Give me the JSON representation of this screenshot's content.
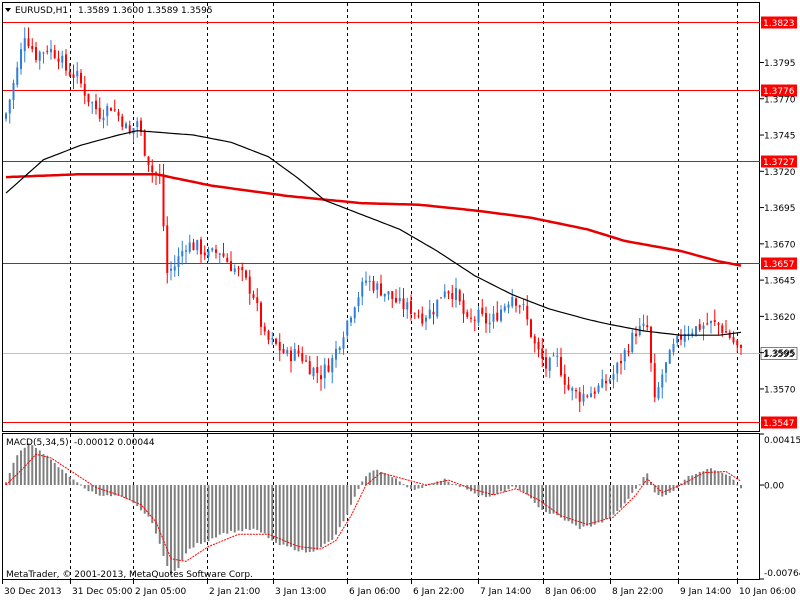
{
  "header": {
    "symbol": "EURUSD,H1",
    "ohlc": "1.3589 1.3600 1.3589 1.3595"
  },
  "macd": {
    "label": "MACD(5,34,5)",
    "values": "-0.00012 0.00044",
    "axis_ticks": [
      "0.00415",
      "0.00",
      "-0.00764"
    ]
  },
  "copyright": "MetaTrader, © 2001-2013, MetaQuotes Software Corp.",
  "colors": {
    "bull": "#2f7ed8",
    "bear": "#ff0000",
    "ma_fast": "#000000",
    "ma_slow": "#e60000",
    "grid": "#000000",
    "level": "#ff0000",
    "histogram": "#808080",
    "signal": "#ff0000"
  },
  "chart_data": {
    "type": "candlestick",
    "price_axis": {
      "ticks": [
        "1.3795",
        "1.3770",
        "1.3745",
        "1.3720",
        "1.3695",
        "1.3670",
        "1.3645",
        "1.3620",
        "1.3595",
        "1.3570"
      ],
      "ylim": [
        1.3541,
        1.3836
      ]
    },
    "time_axis": {
      "ticks": [
        "30 Dec 2013",
        "31 Dec 05:00",
        "2 Jan 05:00",
        "2 Jan 21:00",
        "3 Jan 13:00",
        "6 Jan 06:00",
        "6 Jan 22:00",
        "7 Jan 14:00",
        "8 Jan 06:00",
        "8 Jan 22:00",
        "9 Jan 14:00",
        "10 Jan 06:00"
      ]
    },
    "levels": [
      {
        "price": 1.3823,
        "label": "1.3823"
      },
      {
        "price": 1.3776,
        "label": "1.3776"
      },
      {
        "price": 1.3727,
        "label": "1.3727"
      },
      {
        "price": 1.3657,
        "label": "1.3657"
      },
      {
        "price": 1.3547,
        "label": "1.3547"
      }
    ],
    "current_price": {
      "price": 1.3595,
      "label": "1.3595"
    },
    "close_keypoints": [
      [
        0,
        1.376
      ],
      [
        3,
        1.379
      ],
      [
        5,
        1.3815
      ],
      [
        8,
        1.38
      ],
      [
        11,
        1.3805
      ],
      [
        14,
        1.38
      ],
      [
        16,
        1.379
      ],
      [
        19,
        1.3785
      ],
      [
        22,
        1.377
      ],
      [
        25,
        1.376
      ],
      [
        28,
        1.3765
      ],
      [
        31,
        1.3755
      ],
      [
        33,
        1.3745
      ],
      [
        35,
        1.3755
      ],
      [
        37,
        1.3735
      ],
      [
        39,
        1.372
      ],
      [
        41,
        1.3715
      ],
      [
        43,
        1.365
      ],
      [
        45,
        1.3655
      ],
      [
        48,
        1.367
      ],
      [
        51,
        1.3668
      ],
      [
        54,
        1.3662
      ],
      [
        57,
        1.3665
      ],
      [
        60,
        1.3655
      ],
      [
        63,
        1.3648
      ],
      [
        66,
        1.3635
      ],
      [
        69,
        1.3605
      ],
      [
        72,
        1.36
      ],
      [
        75,
        1.3593
      ],
      [
        78,
        1.3595
      ],
      [
        81,
        1.3585
      ],
      [
        84,
        1.358
      ],
      [
        87,
        1.359
      ],
      [
        90,
        1.361
      ],
      [
        93,
        1.363
      ],
      [
        96,
        1.3645
      ],
      [
        99,
        1.364
      ],
      [
        102,
        1.3635
      ],
      [
        105,
        1.3628
      ],
      [
        108,
        1.3625
      ],
      [
        111,
        1.362
      ],
      [
        114,
        1.3625
      ],
      [
        117,
        1.364
      ],
      [
        120,
        1.3635
      ],
      [
        123,
        1.3615
      ],
      [
        126,
        1.362
      ],
      [
        129,
        1.3615
      ],
      [
        132,
        1.3625
      ],
      [
        135,
        1.3635
      ],
      [
        138,
        1.3625
      ],
      [
        141,
        1.36
      ],
      [
        144,
        1.3585
      ],
      [
        147,
        1.359
      ],
      [
        150,
        1.357
      ],
      [
        153,
        1.3565
      ],
      [
        156,
        1.3568
      ],
      [
        159,
        1.3572
      ],
      [
        162,
        1.358
      ],
      [
        165,
        1.3595
      ],
      [
        168,
        1.361
      ],
      [
        171,
        1.3612
      ],
      [
        173,
        1.356
      ],
      [
        175,
        1.358
      ],
      [
        178,
        1.3598
      ],
      [
        181,
        1.361
      ],
      [
        184,
        1.3612
      ],
      [
        187,
        1.3615
      ],
      [
        190,
        1.3614
      ],
      [
        193,
        1.3606
      ],
      [
        196,
        1.3595
      ]
    ],
    "ma_fast_keypoints": [
      [
        0,
        1.3705
      ],
      [
        10,
        1.3728
      ],
      [
        20,
        1.3738
      ],
      [
        30,
        1.3745
      ],
      [
        35,
        1.3748
      ],
      [
        50,
        1.3745
      ],
      [
        60,
        1.374
      ],
      [
        70,
        1.373
      ],
      [
        78,
        1.3715
      ],
      [
        85,
        1.37
      ],
      [
        95,
        1.369
      ],
      [
        105,
        1.368
      ],
      [
        115,
        1.3665
      ],
      [
        125,
        1.3648
      ],
      [
        135,
        1.3635
      ],
      [
        145,
        1.3625
      ],
      [
        155,
        1.3618
      ],
      [
        160,
        1.3615
      ],
      [
        170,
        1.361
      ],
      [
        180,
        1.3607
      ],
      [
        190,
        1.3607
      ],
      [
        196,
        1.3609
      ]
    ],
    "ma_slow_keypoints": [
      [
        0,
        1.3716
      ],
      [
        20,
        1.3718
      ],
      [
        40,
        1.3718
      ],
      [
        55,
        1.371
      ],
      [
        75,
        1.3703
      ],
      [
        95,
        1.3698
      ],
      [
        110,
        1.3697
      ],
      [
        125,
        1.3693
      ],
      [
        140,
        1.3688
      ],
      [
        155,
        1.368
      ],
      [
        165,
        1.3672
      ],
      [
        180,
        1.3665
      ],
      [
        190,
        1.3658
      ],
      [
        196,
        1.3655
      ]
    ],
    "macd_ylim": [
      -0.00764,
      0.00415
    ],
    "macd_hist_keypoints": [
      [
        0,
        0.0003
      ],
      [
        3,
        0.0025
      ],
      [
        6,
        0.0033
      ],
      [
        9,
        0.0029
      ],
      [
        12,
        0.002
      ],
      [
        15,
        0.0012
      ],
      [
        18,
        0.0005
      ],
      [
        21,
        -0.0003
      ],
      [
        24,
        -0.0007
      ],
      [
        27,
        -0.0009
      ],
      [
        30,
        -0.0009
      ],
      [
        33,
        -0.0013
      ],
      [
        36,
        -0.002
      ],
      [
        39,
        -0.003
      ],
      [
        42,
        -0.0058
      ],
      [
        44,
        -0.0072
      ],
      [
        46,
        -0.0068
      ],
      [
        48,
        -0.0055
      ],
      [
        51,
        -0.0048
      ],
      [
        54,
        -0.0045
      ],
      [
        57,
        -0.004
      ],
      [
        60,
        -0.0038
      ],
      [
        63,
        -0.0037
      ],
      [
        66,
        -0.0036
      ],
      [
        69,
        -0.004
      ],
      [
        72,
        -0.0048
      ],
      [
        75,
        -0.005
      ],
      [
        78,
        -0.0053
      ],
      [
        81,
        -0.0055
      ],
      [
        84,
        -0.005
      ],
      [
        87,
        -0.0045
      ],
      [
        90,
        -0.003
      ],
      [
        93,
        -0.001
      ],
      [
        96,
        0.0008
      ],
      [
        99,
        0.0013
      ],
      [
        102,
        0.0008
      ],
      [
        105,
        0.0003
      ],
      [
        108,
        -0.0003
      ],
      [
        111,
        -0.0003
      ],
      [
        114,
        0.0002
      ],
      [
        117,
        0.0005
      ],
      [
        120,
        0.0
      ],
      [
        123,
        -0.0003
      ],
      [
        126,
        -0.0008
      ],
      [
        129,
        -0.001
      ],
      [
        132,
        -0.0006
      ],
      [
        135,
        -0.0002
      ],
      [
        138,
        -0.0005
      ],
      [
        141,
        -0.0015
      ],
      [
        144,
        -0.0022
      ],
      [
        147,
        -0.0025
      ],
      [
        150,
        -0.003
      ],
      [
        153,
        -0.0035
      ],
      [
        156,
        -0.0033
      ],
      [
        159,
        -0.003
      ],
      [
        162,
        -0.0025
      ],
      [
        165,
        -0.0015
      ],
      [
        168,
        -0.0003
      ],
      [
        171,
        0.001
      ],
      [
        173,
        -0.0005
      ],
      [
        175,
        -0.001
      ],
      [
        178,
        -0.0005
      ],
      [
        181,
        0.0005
      ],
      [
        184,
        0.001
      ],
      [
        187,
        0.0013
      ],
      [
        190,
        0.0012
      ],
      [
        193,
        0.0008
      ],
      [
        196,
        -0.0002
      ]
    ],
    "macd_signal_keypoints": [
      [
        0,
        0.0
      ],
      [
        5,
        0.0015
      ],
      [
        8,
        0.0025
      ],
      [
        12,
        0.0022
      ],
      [
        18,
        0.001
      ],
      [
        24,
        -0.0002
      ],
      [
        30,
        -0.0008
      ],
      [
        36,
        -0.0016
      ],
      [
        40,
        -0.003
      ],
      [
        44,
        -0.006
      ],
      [
        48,
        -0.0062
      ],
      [
        54,
        -0.005
      ],
      [
        62,
        -0.004
      ],
      [
        70,
        -0.004
      ],
      [
        78,
        -0.005
      ],
      [
        84,
        -0.0052
      ],
      [
        88,
        -0.0045
      ],
      [
        92,
        -0.0025
      ],
      [
        96,
        0.0
      ],
      [
        100,
        0.001
      ],
      [
        106,
        0.0005
      ],
      [
        112,
        0.0
      ],
      [
        118,
        0.0004
      ],
      [
        124,
        -0.0003
      ],
      [
        130,
        -0.0008
      ],
      [
        136,
        -0.0003
      ],
      [
        142,
        -0.0012
      ],
      [
        148,
        -0.0025
      ],
      [
        155,
        -0.0032
      ],
      [
        162,
        -0.0026
      ],
      [
        168,
        -0.0008
      ],
      [
        171,
        0.0005
      ],
      [
        175,
        -0.0006
      ],
      [
        180,
        0.0
      ],
      [
        186,
        0.001
      ],
      [
        192,
        0.0011
      ],
      [
        196,
        0.0003
      ]
    ]
  }
}
